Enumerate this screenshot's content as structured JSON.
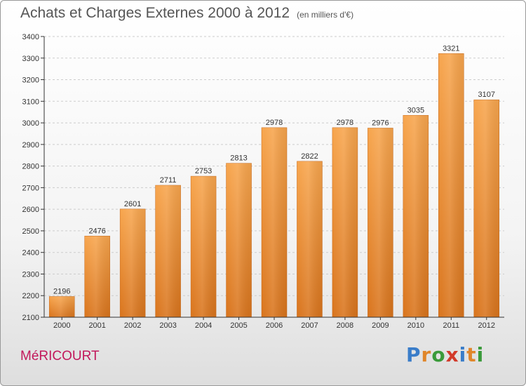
{
  "header": {
    "title": "Achats et Charges Externes 2000 à 2012",
    "subtitle": "(en milliers d'€)"
  },
  "footer": {
    "commune": "MéRICOURT",
    "brand_letters": [
      "P",
      "r",
      "o",
      "x",
      "i",
      "t",
      "i"
    ],
    "brand_colors": [
      "#3a7dc9",
      "#e0862a",
      "#3a9a3a",
      "#d23a2a",
      "#3a7dc9",
      "#e0862a",
      "#3a9a3a"
    ]
  },
  "colors": {
    "bar_top": "#f7a54d",
    "bar_bottom": "#d9741c",
    "grid": "#cccccc",
    "axis": "#333333",
    "text": "#333333"
  },
  "chart_data": {
    "type": "bar",
    "title": "Achats et Charges Externes 2000 à 2012",
    "subtitle": "(en milliers d'€)",
    "categories": [
      "2000",
      "2001",
      "2002",
      "2003",
      "2004",
      "2005",
      "2006",
      "2007",
      "2008",
      "2009",
      "2010",
      "2011",
      "2012"
    ],
    "values": [
      2196,
      2476,
      2601,
      2711,
      2753,
      2813,
      2978,
      2822,
      2978,
      2976,
      3035,
      3321,
      3107
    ],
    "ylim": [
      2100,
      3400
    ],
    "yticks": [
      2100,
      2200,
      2300,
      2400,
      2500,
      2600,
      2700,
      2800,
      2900,
      3000,
      3100,
      3200,
      3300,
      3400
    ],
    "grid": true,
    "data_labels": true
  }
}
